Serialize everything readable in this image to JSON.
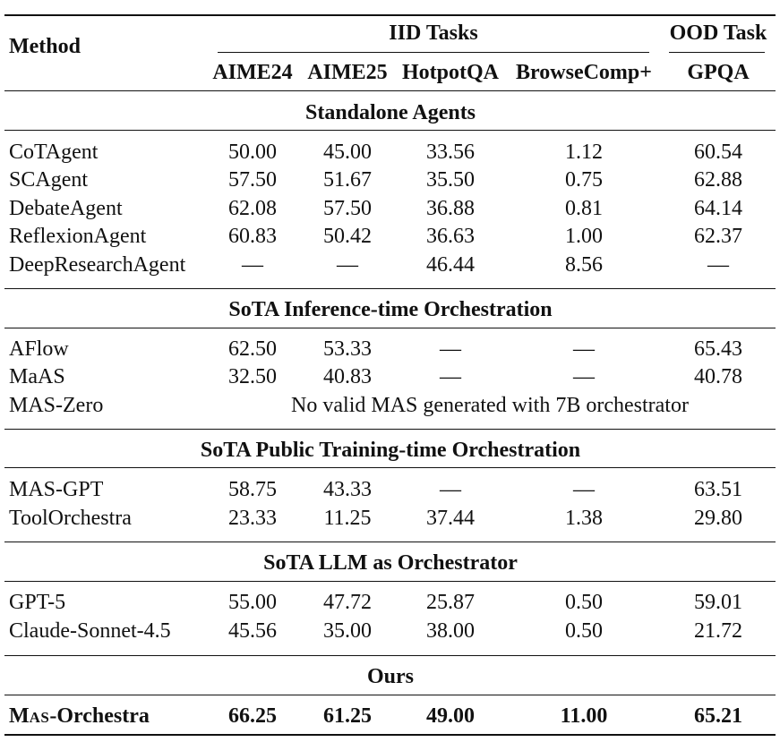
{
  "header": {
    "method": "Method",
    "iid_group": "IID Tasks",
    "ood_group": "OOD Task",
    "columns": [
      "AIME24",
      "AIME25",
      "HotpotQA",
      "BrowseComp+",
      "GPQA"
    ]
  },
  "sections": [
    {
      "title": "Standalone Agents",
      "rows": [
        {
          "method": "CoTAgent",
          "values": [
            "50.00",
            "45.00",
            "33.56",
            "1.12",
            "60.54"
          ]
        },
        {
          "method": "SCAgent",
          "values": [
            "57.50",
            "51.67",
            "35.50",
            "0.75",
            "62.88"
          ]
        },
        {
          "method": "DebateAgent",
          "values": [
            "62.08",
            "57.50",
            "36.88",
            "0.81",
            "64.14"
          ]
        },
        {
          "method": "ReflexionAgent",
          "values": [
            "60.83",
            "50.42",
            "36.63",
            "1.00",
            "62.37"
          ]
        },
        {
          "method": "DeepResearchAgent",
          "values": [
            "—",
            "—",
            "46.44",
            "8.56",
            "—"
          ]
        }
      ]
    },
    {
      "title": "SoTA Inference-time Orchestration",
      "rows": [
        {
          "method": "AFlow",
          "values": [
            "62.50",
            "53.33",
            "—",
            "—",
            "65.43"
          ]
        },
        {
          "method": "MaAS",
          "values": [
            "32.50",
            "40.83",
            "—",
            "—",
            "40.78"
          ]
        },
        {
          "method": "MAS-Zero",
          "note": "No valid MAS generated with 7B orchestrator"
        }
      ]
    },
    {
      "title": "SoTA Public Training-time Orchestration",
      "rows": [
        {
          "method": "MAS-GPT",
          "values": [
            "58.75",
            "43.33",
            "—",
            "—",
            "63.51"
          ]
        },
        {
          "method": "ToolOrchestra",
          "values": [
            "23.33",
            "11.25",
            "37.44",
            "1.38",
            "29.80"
          ]
        }
      ]
    },
    {
      "title": "SoTA LLM as Orchestrator",
      "rows": [
        {
          "method": "GPT-5",
          "values": [
            "55.00",
            "47.72",
            "25.87",
            "0.50",
            "59.01"
          ]
        },
        {
          "method": "Claude-Sonnet-4.5",
          "values": [
            "45.56",
            "35.00",
            "38.00",
            "0.50",
            "21.72"
          ]
        }
      ]
    },
    {
      "title": "Ours",
      "rows": [
        {
          "method_parts": [
            "M",
            "AS",
            "-Orchestra"
          ],
          "values": [
            "66.25",
            "61.25",
            "49.00",
            "11.00",
            "65.21"
          ]
        }
      ]
    }
  ]
}
